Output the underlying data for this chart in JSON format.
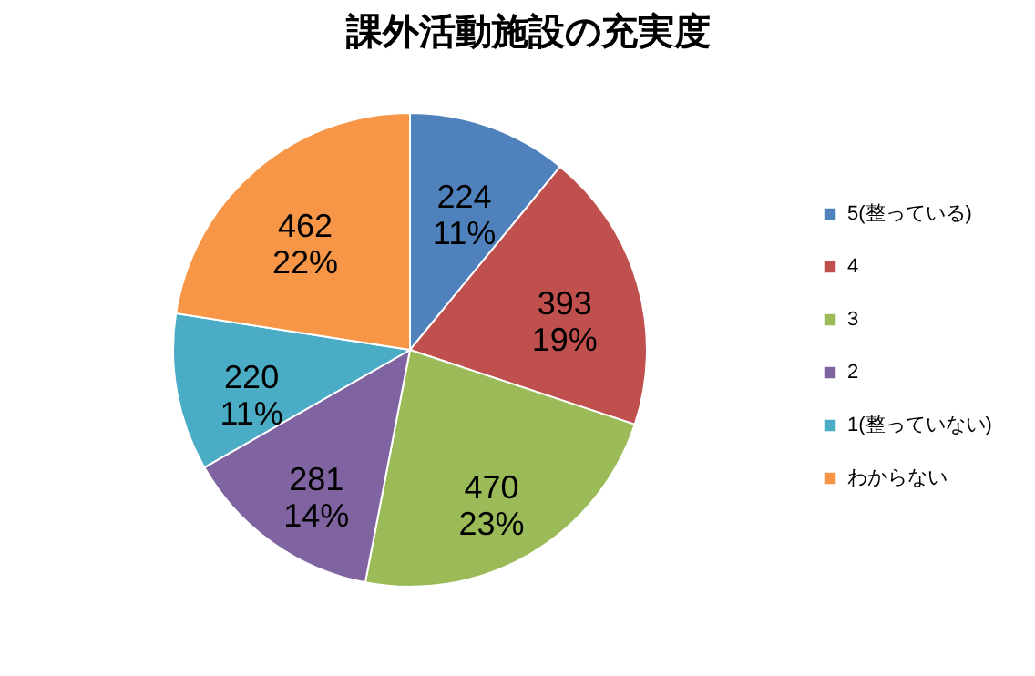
{
  "chart_data": {
    "type": "pie",
    "title": "課外活動施設の充実度",
    "categories": [
      "5(整っている)",
      "4",
      "3",
      "2",
      "1(整っていない)",
      "わからない"
    ],
    "values": [
      224,
      393,
      470,
      281,
      220,
      462
    ],
    "colors": [
      "#4f81bd",
      "#c0504d",
      "#9bbb59",
      "#8064a2",
      "#4bacc6",
      "#f79646"
    ],
    "value_labels": [
      "224\n11%",
      "393\n19%",
      "470\n23%",
      "281\n14%",
      "220\n11%",
      "462\n22%"
    ],
    "legend": "right"
  }
}
